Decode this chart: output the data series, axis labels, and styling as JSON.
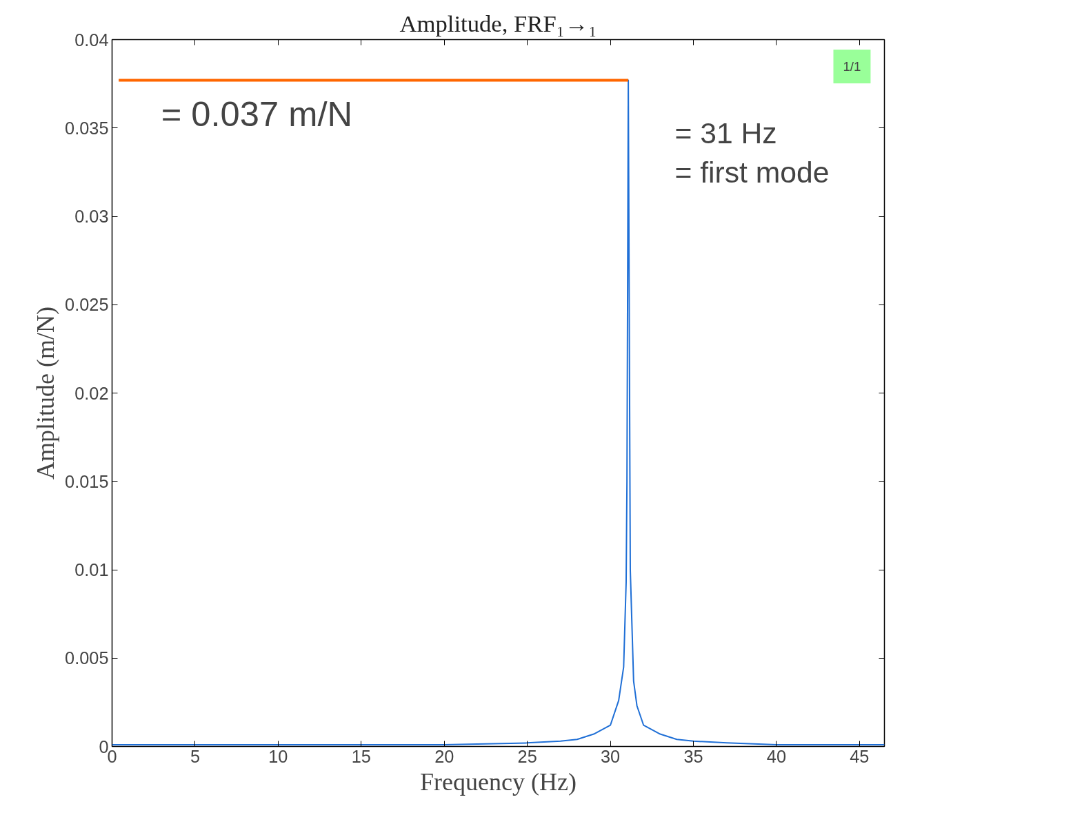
{
  "chart_data": {
    "type": "line",
    "title": "Amplitude, FRF₁→₁",
    "xlabel": "Frequency (Hz)",
    "ylabel": "Amplitude (m/N)",
    "series": [
      {
        "color": "#1f6fd6",
        "x": [
          0,
          5,
          10,
          15,
          20,
          25,
          27,
          28,
          29,
          30,
          30.5,
          30.8,
          30.95,
          31.0,
          31.08,
          31.2,
          31.4,
          31.6,
          32,
          33,
          34,
          35,
          37,
          40,
          43,
          46.5
        ],
        "values": [
          0.0001,
          0.0001,
          0.0001,
          0.0001,
          0.0001,
          0.0002,
          0.0003,
          0.0004,
          0.0007,
          0.0012,
          0.0026,
          0.0045,
          0.0093,
          0.015,
          0.0377,
          0.01,
          0.0037,
          0.0023,
          0.0012,
          0.0007,
          0.0004,
          0.0003,
          0.0002,
          0.0001,
          0.0001,
          0.0001
        ]
      },
      {
        "color": "#ff6600",
        "x": [
          0.4,
          31.08
        ],
        "values": [
          0.0377,
          0.0377
        ]
      }
    ],
    "xlim": [
      0,
      46.5
    ],
    "ylim": [
      0,
      0.04
    ],
    "xticks": [
      0,
      5,
      10,
      15,
      20,
      25,
      30,
      35,
      40,
      45
    ],
    "yticks": [
      0,
      0.005,
      0.01,
      0.015,
      0.02,
      0.025,
      0.03,
      0.035,
      0.04
    ],
    "grid": false,
    "annotations": [
      "= 0.037 m/N",
      "= 31 Hz = first mode",
      "1/1"
    ]
  }
}
